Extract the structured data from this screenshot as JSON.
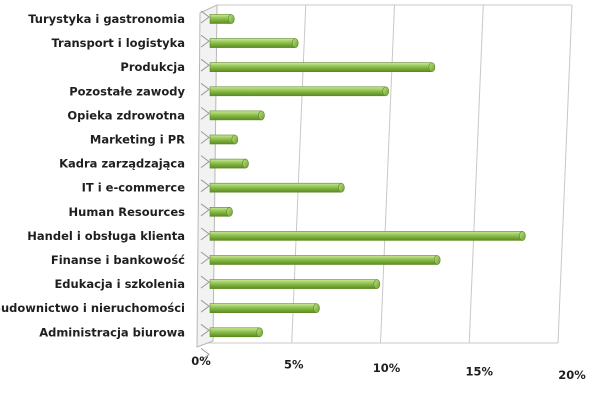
{
  "chart_data": {
    "type": "bar",
    "orientation": "horizontal",
    "style": "3d-cylinder",
    "categories": [
      "Turystyka i gastronomia",
      "Transport i logistyka",
      "Produkcja",
      "Pozostałe zawody",
      "Opieka zdrowotna",
      "Marketing i PR",
      "Kadra zarządzająca",
      "IT i e-commerce",
      "Human Resources",
      "Handel i obsługa klienta",
      "Finanse i bankowość",
      "Edukacja i szkolenia",
      "Budownictwo i nieruchomości",
      "Administracja biurowa"
    ],
    "values": [
      1.2,
      4.8,
      12.5,
      9.9,
      2.9,
      1.4,
      2.0,
      7.4,
      1.1,
      17.6,
      12.8,
      9.4,
      6.0,
      2.8
    ],
    "unit": "%",
    "xlim": [
      0,
      20
    ],
    "ticks": [
      "0%",
      "5%",
      "10%",
      "15%",
      "20%"
    ],
    "grid": true,
    "legend": "none",
    "title": "",
    "colors": {
      "bar": "#8cc04b",
      "bar_light": "#cbe89a",
      "bar_dark": "#5c8a22",
      "grid": "#c8c8c8",
      "wall": "#f2f2f2"
    }
  }
}
